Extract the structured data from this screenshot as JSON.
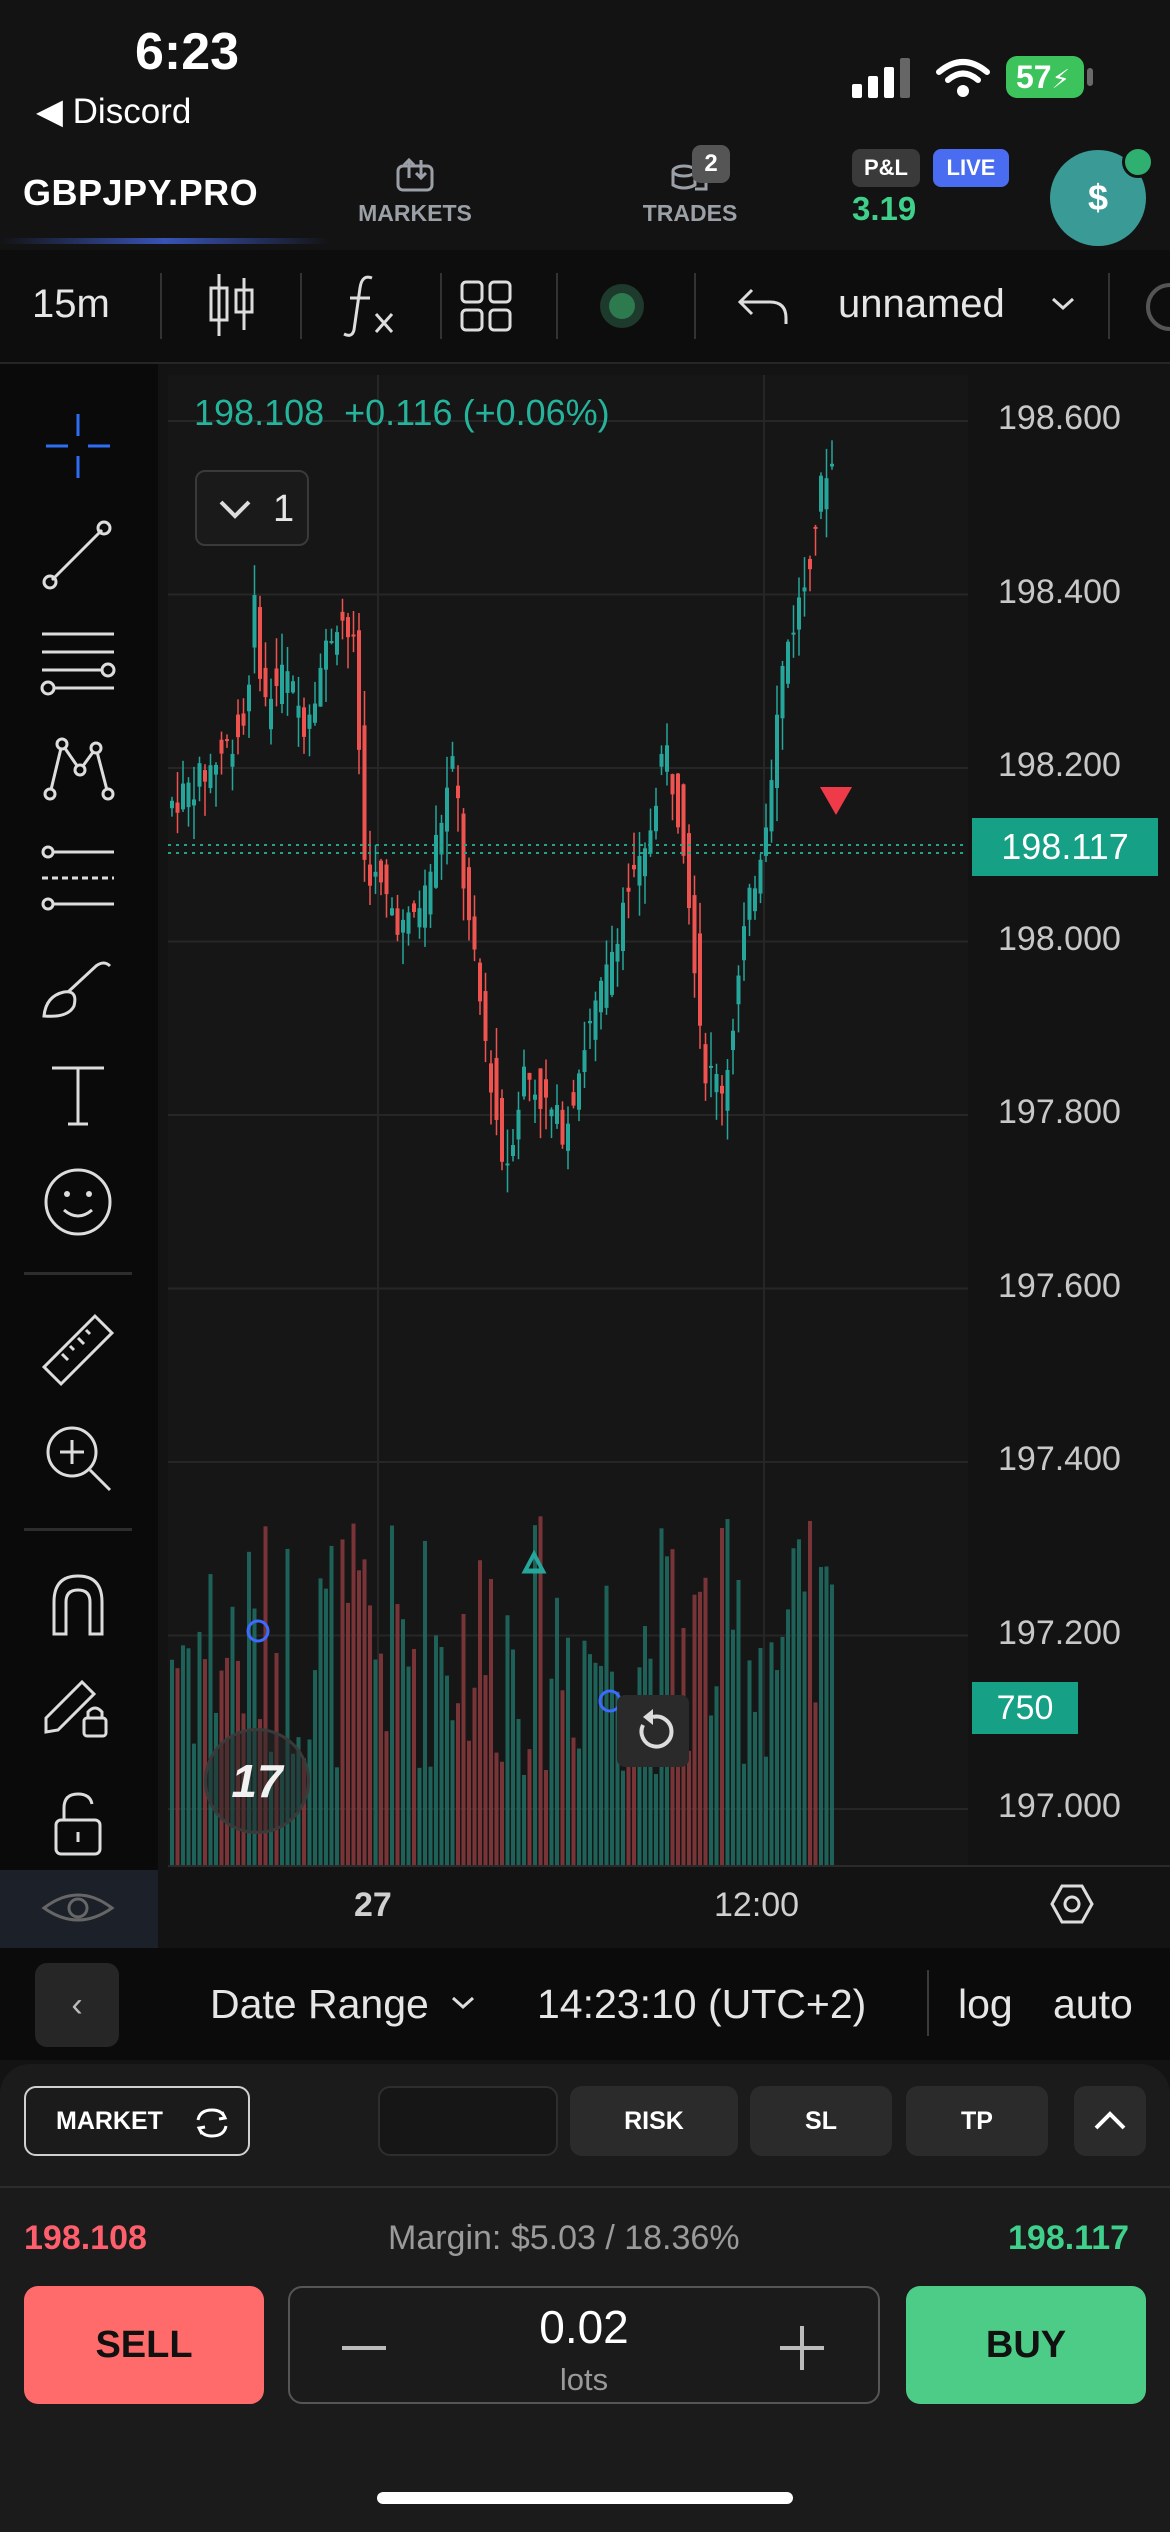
{
  "status_bar": {
    "time": "6:23",
    "back_app": "◀ Discord",
    "battery": "57"
  },
  "header": {
    "symbol": "GBPJPY.PRO",
    "markets_label": "MARKETS",
    "trades_label": "TRADES",
    "trades_count": "2",
    "pnl_tag": "P&L",
    "live_tag": "LIVE",
    "pnl_value": "3.19",
    "avatar_symbol": "$"
  },
  "toolbar": {
    "interval": "15m",
    "layout_name": "unnamed"
  },
  "chart": {
    "ohlc_text": "198.108  +0.116 (+0.06%)",
    "legend_count": "1",
    "price_ticks": [
      "198.600",
      "198.400",
      "198.200",
      "198.000",
      "197.800",
      "197.600",
      "197.400",
      "197.200",
      "197.000"
    ],
    "last_price": "198.117",
    "volume_label": "750",
    "time_ticks": [
      "27",
      "12:00"
    ],
    "colors": {
      "up": "#26a69a",
      "down": "#ef5350",
      "last_price_bg": "#16a085"
    }
  },
  "chart_data": {
    "type": "candlestick",
    "y_ticks": [
      198.6,
      198.4,
      198.2,
      198.0,
      197.8,
      197.6,
      197.4,
      197.2,
      197.0
    ],
    "ylim": [
      196.95,
      198.65
    ],
    "last_price": 198.117,
    "x_ticks": [
      "27",
      "12:00"
    ]
  },
  "bottom_bar": {
    "date_range": "Date Range",
    "clock": "14:23:10 (UTC+2)",
    "log": "log",
    "auto": "auto"
  },
  "order_panel": {
    "market_label": "MARKET",
    "risk_label": "RISK",
    "sl_label": "SL",
    "tp_label": "TP",
    "sell_price": "198.108",
    "buy_price": "198.117",
    "margin": "Margin: $5.03 / 18.36%",
    "sell_label": "SELL",
    "buy_label": "BUY",
    "lots_value": "0.02",
    "lots_label": "lots"
  }
}
